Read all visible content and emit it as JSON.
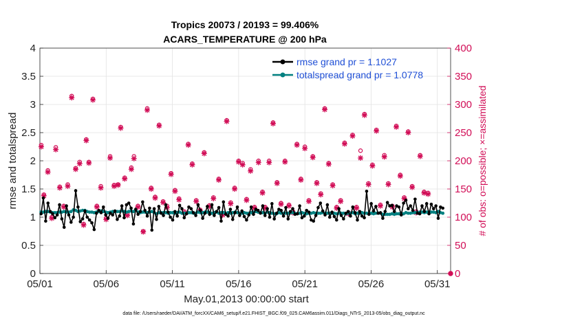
{
  "chart_data": {
    "type": "line",
    "title": "Tropics 20073 / 20193 = 99.406%",
    "subtitle": "ACARS_TEMPERATURE @ 200 hPa",
    "xlabel": "May.01,2013 00:00:00 start",
    "ylabel": "rmse and totalspread",
    "y2label": "# of obs: o=possible; ×=assimilated",
    "xlim": [
      0,
      31
    ],
    "ylim": [
      0,
      4
    ],
    "y2lim": [
      0,
      400
    ],
    "x_ticks": [
      0,
      5,
      10,
      15,
      20,
      25,
      30
    ],
    "x_tick_labels": [
      "05/01",
      "05/06",
      "05/11",
      "05/16",
      "05/21",
      "05/26",
      "05/31"
    ],
    "y_tick_labels": [
      "0",
      "0.5",
      "1",
      "1.5",
      "2",
      "2.5",
      "3",
      "3.5",
      "4"
    ],
    "y2_tick_labels": [
      "0",
      "50",
      "100",
      "150",
      "200",
      "250",
      "300",
      "350",
      "400"
    ],
    "legend": [
      {
        "name": "rmse grand pr = 1.1027",
        "color": "#000000"
      },
      {
        "name": "totalspread grand pr = 1.0778",
        "color": "#008080"
      }
    ],
    "footer": "data file: /Users/raeder/DAI/ATM_forcXX/CAM6_setup/f.e21.FHIST_BGC.f09_025.CAM6assim.011/Diags_NTrS_2013-05/obs_diag_output.nc",
    "rmse": [
      1.06,
      1.34,
      0.93,
      1.25,
      1.1,
      1.06,
      0.99,
      1.04,
      1.22,
      0.97,
      0.82,
      1.2,
      1.04,
      0.91,
      1.0,
      1.47,
      1.18,
      0.92,
      0.97,
      1.11,
      1.0,
      0.95,
      0.9,
      0.78,
      1.07,
      1.12,
      1.08,
      1.18,
      1.04,
      0.98,
      1.07,
      1.04,
      1.11,
      0.96,
      1.02,
      1.2,
      0.99,
      1.22,
      1.25,
      1.16,
      0.88,
      1.14,
      1.05,
      1.1,
      1.27,
      1.12,
      1.02,
      1.16,
      0.77,
      1.15,
      0.96,
      1.19,
      1.07,
      1.03,
      1.22,
      1.09,
      1.0,
      0.95,
      1.1,
      1.02,
      1.21,
      1.15,
      0.99,
      1.06,
      1.18,
      1.15,
      1.08,
      1.03,
      1.22,
      1.12,
      0.98,
      1.07,
      1.19,
      1.05,
      1.22,
      1.03,
      1.1,
      1.17,
      0.93,
      1.27,
      1.05,
      1.02,
      1.14,
      0.96,
      1.08,
      1.18,
      1.03,
      1.11,
      1.01,
      0.95,
      1.04,
      1.18,
      1.05,
      1.14,
      1.12,
      1.07,
      1.2,
      1.03,
      1.15,
      1.0,
      1.24,
      0.97,
      1.07,
      1.14,
      1.12,
      1.02,
      1.17,
      0.97,
      1.1,
      1.15,
      1.05,
      1.06,
      1.2,
      0.99,
      1.02,
      1.12,
      1.09,
      0.95,
      0.93,
      1.03,
      1.17,
      1.25,
      1.11,
      1.04,
      1.22,
      1.0,
      1.09,
      1.01,
      0.95,
      1.15,
      1.03,
      0.97,
      1.07,
      1.1,
      1.02,
      1.18,
      1.08,
      0.95,
      1.1,
      1.02,
      0.99,
      1.46,
      1.05,
      1.24,
      1.11,
      1.19,
      1.07,
      1.08,
      0.98,
      1.1,
      1.26,
      1.2,
      1.21,
      1.1,
      1.2,
      1.18,
      1.04,
      1.25,
      1.3,
      1.15,
      1.2,
      1.12,
      1.32,
      1.07,
      1.06,
      1.2,
      1.1,
      1.24,
      1.06,
      1.23,
      1.15,
      1.2,
      0.98,
      1.18,
      1.16
    ],
    "spread": [
      1.09,
      1.09,
      1.1,
      1.1,
      1.09,
      1.08,
      1.08,
      1.08,
      1.09,
      1.09,
      1.1,
      1.09,
      1.09,
      1.1,
      1.13,
      1.12,
      1.1,
      1.11,
      1.12,
      1.12,
      1.1,
      1.09,
      1.09,
      1.08,
      1.09,
      1.1,
      1.11,
      1.1,
      1.09,
      1.08,
      1.09,
      1.1,
      1.1,
      1.1,
      1.1,
      1.11,
      1.1,
      1.09,
      1.1,
      1.11,
      1.1,
      1.13,
      1.09,
      1.08,
      1.09,
      1.09,
      1.08,
      1.09,
      1.1,
      1.08,
      1.06,
      1.08,
      1.08,
      1.08,
      1.08,
      1.07,
      1.08,
      1.08,
      1.07,
      1.08,
      1.09,
      1.07,
      1.07,
      1.07,
      1.08,
      1.08,
      1.07,
      1.07,
      1.09,
      1.08,
      1.08,
      1.09,
      1.09,
      1.08,
      1.07,
      1.08,
      1.09,
      1.07,
      1.08,
      1.08,
      1.07,
      1.08,
      1.07,
      1.08,
      1.09,
      1.08,
      1.07,
      1.07,
      1.08,
      1.07,
      1.07,
      1.08,
      1.09,
      1.1,
      1.09,
      1.08,
      1.08,
      1.07,
      1.09,
      1.08,
      1.07,
      1.06,
      1.06,
      1.08,
      1.07,
      1.07,
      1.07,
      1.07,
      1.08,
      1.08,
      1.07,
      1.06,
      1.07,
      1.08,
      1.07,
      1.06,
      1.07,
      1.07,
      1.08,
      1.07,
      1.07,
      1.07,
      1.08,
      1.07,
      1.07,
      1.07,
      1.07,
      1.07,
      1.06,
      1.07,
      1.07,
      1.07,
      1.06,
      1.07,
      1.07,
      1.08,
      1.06,
      1.07,
      1.07,
      1.08,
      1.07,
      1.07,
      1.07,
      1.07,
      1.06,
      1.07,
      1.07,
      1.07,
      1.05,
      1.05,
      1.05,
      1.05,
      1.06,
      1.05,
      1.06,
      1.06,
      1.07,
      1.06,
      1.08,
      1.07,
      1.07,
      1.08,
      1.08,
      1.08,
      1.09,
      1.09,
      1.08,
      1.09,
      1.09,
      1.09,
      1.09,
      1.08,
      1.1,
      1.08,
      1.07
    ],
    "obs_points": [
      [
        0.1,
        228,
        225
      ],
      [
        0.3,
        140,
        138
      ],
      [
        0.6,
        183,
        180
      ],
      [
        0.9,
        100,
        98
      ],
      [
        1.2,
        224,
        220
      ],
      [
        1.5,
        154,
        152
      ],
      [
        1.8,
        120,
        118
      ],
      [
        2.1,
        158,
        155
      ],
      [
        2.4,
        315,
        312
      ],
      [
        2.7,
        187,
        185
      ],
      [
        3.0,
        198,
        195
      ],
      [
        3.3,
        88,
        86
      ],
      [
        3.5,
        238,
        236
      ],
      [
        3.7,
        198,
        196
      ],
      [
        4.0,
        310,
        308
      ],
      [
        4.3,
        120,
        118
      ],
      [
        4.6,
        155,
        152
      ],
      [
        5.0,
        98,
        96
      ],
      [
        5.3,
        208,
        205
      ],
      [
        5.6,
        157,
        155
      ],
      [
        5.9,
        158,
        157
      ],
      [
        6.1,
        260,
        258
      ],
      [
        6.4,
        170,
        168
      ],
      [
        6.6,
        105,
        103
      ],
      [
        6.9,
        188,
        185
      ],
      [
        7.1,
        208,
        204
      ],
      [
        7.4,
        120,
        118
      ],
      [
        7.8,
        75,
        74
      ],
      [
        8.1,
        293,
        290
      ],
      [
        8.4,
        152,
        150
      ],
      [
        8.7,
        136,
        134
      ],
      [
        9.0,
        264,
        262
      ],
      [
        9.3,
        128,
        126
      ],
      [
        9.6,
        120,
        117
      ],
      [
        9.9,
        178,
        176
      ],
      [
        10.2,
        148,
        146
      ],
      [
        10.5,
        133,
        131
      ],
      [
        10.9,
        110,
        108
      ],
      [
        11.2,
        230,
        228
      ],
      [
        11.5,
        195,
        193
      ],
      [
        11.8,
        130,
        128
      ],
      [
        12.1,
        113,
        111
      ],
      [
        12.4,
        215,
        213
      ],
      [
        12.8,
        121,
        119
      ],
      [
        13.1,
        135,
        133
      ],
      [
        13.5,
        168,
        166
      ],
      [
        13.8,
        106,
        104
      ],
      [
        14.1,
        272,
        270
      ],
      [
        14.4,
        126,
        124
      ],
      [
        14.7,
        152,
        150
      ],
      [
        15.0,
        200,
        198
      ],
      [
        15.3,
        196,
        193
      ],
      [
        15.6,
        132,
        130
      ],
      [
        15.9,
        185,
        182
      ],
      [
        16.2,
        118,
        116
      ],
      [
        16.5,
        200,
        197
      ],
      [
        16.8,
        145,
        143
      ],
      [
        17.0,
        118,
        116
      ],
      [
        17.3,
        200,
        197
      ],
      [
        17.6,
        268,
        266
      ],
      [
        17.9,
        162,
        160
      ],
      [
        18.2,
        125,
        123
      ],
      [
        18.5,
        200,
        198
      ],
      [
        18.8,
        122,
        120
      ],
      [
        19.1,
        110,
        108
      ],
      [
        19.4,
        230,
        228
      ],
      [
        19.7,
        168,
        166
      ],
      [
        20.0,
        225,
        222
      ],
      [
        20.3,
        130,
        128
      ],
      [
        20.6,
        208,
        206
      ],
      [
        20.9,
        162,
        160
      ],
      [
        21.2,
        142,
        140
      ],
      [
        21.5,
        293,
        291
      ],
      [
        21.8,
        196,
        194
      ],
      [
        22.1,
        158,
        156
      ],
      [
        22.4,
        118,
        116
      ],
      [
        22.7,
        130,
        128
      ],
      [
        23.0,
        232,
        230
      ],
      [
        23.3,
        108,
        106
      ],
      [
        23.6,
        246,
        244
      ],
      [
        23.9,
        118,
        116
      ],
      [
        24.2,
        218,
        205
      ],
      [
        24.5,
        283,
        281
      ],
      [
        24.8,
        160,
        158
      ],
      [
        25.1,
        193,
        191
      ],
      [
        25.4,
        255,
        253
      ],
      [
        25.7,
        122,
        120
      ],
      [
        26.0,
        210,
        207
      ],
      [
        26.3,
        160,
        158
      ],
      [
        26.6,
        120,
        118
      ],
      [
        26.9,
        262,
        260
      ],
      [
        27.2,
        175,
        173
      ],
      [
        27.5,
        135,
        133
      ],
      [
        27.8,
        252,
        250
      ],
      [
        28.1,
        155,
        153
      ],
      [
        28.4,
        110,
        108
      ],
      [
        28.7,
        210,
        208
      ],
      [
        29.0,
        145,
        143
      ],
      [
        29.3,
        143,
        141
      ]
    ]
  }
}
